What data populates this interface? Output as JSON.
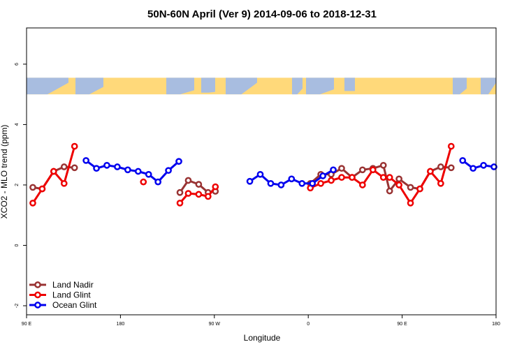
{
  "chart_data": {
    "type": "line",
    "title": "50N-60N April (Ver 9)   2014-09-06 to 2018-12-31",
    "xlabel": "Longitude",
    "ylabel": "XCO2 - MLO trend (ppm)",
    "xlim": [
      90,
      540
    ],
    "ylim": [
      -2.3,
      7.2
    ],
    "x_ticks": [
      {
        "value": 90,
        "label": "90 E"
      },
      {
        "value": 180,
        "label": "180"
      },
      {
        "value": 270,
        "label": "90 W"
      },
      {
        "value": 360,
        "label": "0"
      },
      {
        "value": 450,
        "label": "90 E"
      },
      {
        "value": 540,
        "label": "180"
      }
    ],
    "y_ticks": [
      {
        "value": -2,
        "label": "-2"
      },
      {
        "value": 0,
        "label": "0"
      },
      {
        "value": 2,
        "label": "2"
      },
      {
        "value": 4,
        "label": "4"
      },
      {
        "value": 6,
        "label": "6"
      }
    ],
    "map_strip": {
      "ymin": 5.0,
      "ymax": 5.55,
      "ocean_color": "#a8bde0",
      "land_color": "#ffd97a"
    },
    "legend": {
      "placement": "bottom-left"
    },
    "series": [
      {
        "name": "Land Nadir",
        "color": "#993333",
        "segments": [
          [
            [
              96,
              1.92
            ],
            [
              105,
              1.87
            ],
            [
              116,
              2.45
            ],
            [
              126,
              2.6
            ],
            [
              136,
              2.57
            ]
          ],
          [
            [
              237,
              1.75
            ],
            [
              245,
              2.15
            ],
            [
              255,
              2.02
            ],
            [
              264,
              1.75
            ],
            [
              271,
              1.79
            ]
          ],
          [
            [
              362,
              2.05
            ],
            [
              372,
              2.35
            ],
            [
              382,
              2.35
            ],
            [
              392,
              2.55
            ],
            [
              402,
              2.25
            ],
            [
              412,
              2.5
            ],
            [
              422,
              2.55
            ],
            [
              432,
              2.65
            ],
            [
              438,
              1.8
            ],
            [
              447,
              2.2
            ],
            [
              458,
              1.92
            ],
            [
              467,
              1.87
            ],
            [
              477,
              2.45
            ],
            [
              487,
              2.6
            ],
            [
              497,
              2.57
            ]
          ]
        ]
      },
      {
        "name": "Land Glint",
        "color": "#ee0000",
        "segments": [
          [
            [
              96,
              1.4
            ],
            [
              105,
              1.87
            ],
            [
              116,
              2.45
            ],
            [
              126,
              2.05
            ],
            [
              136,
              3.28
            ]
          ],
          [
            [
              202,
              2.1
            ]
          ],
          [
            [
              237,
              1.4
            ],
            [
              245,
              1.72
            ],
            [
              255,
              1.69
            ],
            [
              264,
              1.62
            ],
            [
              271,
              1.94
            ]
          ],
          [
            [
              362,
              1.9
            ],
            [
              372,
              2.05
            ],
            [
              382,
              2.15
            ],
            [
              392,
              2.25
            ],
            [
              402,
              2.25
            ],
            [
              412,
              2.0
            ],
            [
              422,
              2.5
            ],
            [
              432,
              2.25
            ],
            [
              438,
              2.25
            ],
            [
              447,
              2.0
            ],
            [
              458,
              1.4
            ],
            [
              467,
              1.87
            ],
            [
              477,
              2.45
            ],
            [
              487,
              2.05
            ],
            [
              497,
              3.28
            ]
          ]
        ]
      },
      {
        "name": "Ocean Glint",
        "color": "#0000ee",
        "segments": [
          [
            [
              147,
              2.81
            ],
            [
              157,
              2.55
            ],
            [
              167,
              2.65
            ],
            [
              177,
              2.6
            ],
            [
              187,
              2.5
            ],
            [
              197,
              2.45
            ],
            [
              207,
              2.35
            ],
            [
              216,
              2.1
            ],
            [
              226,
              2.48
            ],
            [
              236,
              2.78
            ]
          ],
          [
            [
              304,
              2.12
            ],
            [
              314,
              2.35
            ],
            [
              324,
              2.05
            ],
            [
              334,
              2.0
            ],
            [
              344,
              2.2
            ],
            [
              354,
              2.05
            ],
            [
              364,
              2.05
            ],
            [
              374,
              2.3
            ],
            [
              384,
              2.5
            ]
          ],
          [
            [
              508,
              2.81
            ],
            [
              518,
              2.55
            ],
            [
              528,
              2.65
            ],
            [
              538,
              2.6
            ]
          ]
        ]
      }
    ]
  }
}
